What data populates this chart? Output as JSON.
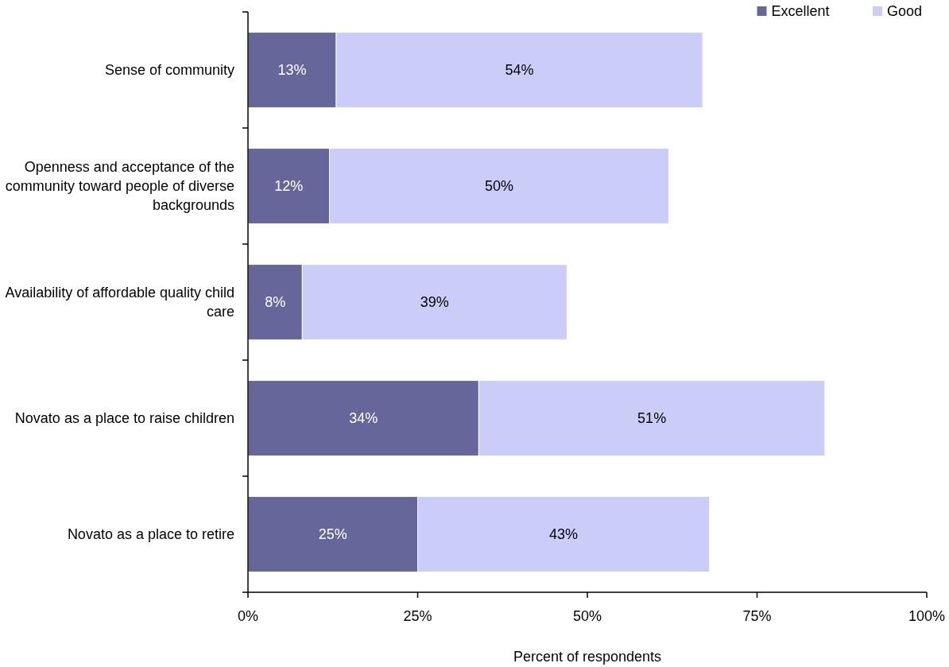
{
  "chart_data": {
    "type": "bar",
    "orientation": "horizontal",
    "stacked": true,
    "categories": [
      "Sense of community",
      "Openness and acceptance of the community toward people of diverse backgrounds",
      "Availability of affordable quality child care",
      "Novato as a place to raise children",
      "Novato as a place to retire"
    ],
    "series": [
      {
        "name": "Excellent",
        "color": "#67669a",
        "values": [
          13,
          12,
          8,
          34,
          25
        ],
        "value_labels": [
          "13%",
          "12%",
          "8%",
          "34%",
          "25%"
        ]
      },
      {
        "name": "Good",
        "color": "#ccccf9",
        "values": [
          54,
          50,
          39,
          51,
          43
        ],
        "value_labels": [
          "54%",
          "50%",
          "39%",
          "51%",
          "43%"
        ]
      }
    ],
    "xlim": [
      0,
      100
    ],
    "xticks": [
      {
        "value": 0,
        "label": "0%"
      },
      {
        "value": 25,
        "label": "25%"
      },
      {
        "value": 50,
        "label": "50%"
      },
      {
        "value": 75,
        "label": "75%"
      },
      {
        "value": 100,
        "label": "100%"
      }
    ],
    "xlabel": "Percent of respondents",
    "legend": "top right",
    "grid": false
  }
}
